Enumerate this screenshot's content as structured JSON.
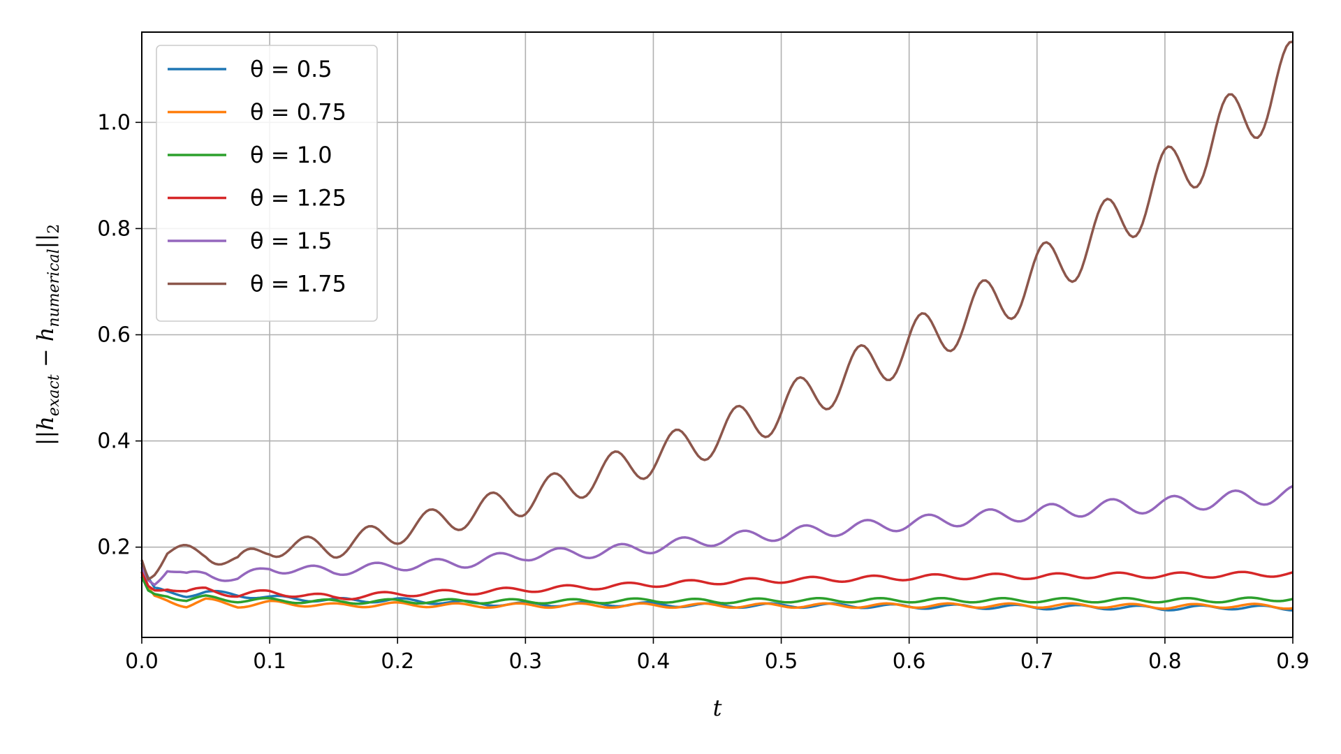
{
  "chart_data": {
    "type": "line",
    "title": "",
    "xlabel": "t",
    "ylabel_parts": {
      "open": "||h",
      "sub1": "exact",
      "minus": " − h",
      "sub2": "numerical",
      "close": "||",
      "sub3": "2"
    },
    "xlim": [
      0.0,
      0.9
    ],
    "ylim": [
      0.03,
      1.17
    ],
    "xticks": [
      0.0,
      0.1,
      0.2,
      0.3,
      0.4,
      0.5,
      0.6,
      0.7,
      0.8,
      0.9
    ],
    "xtick_labels": [
      "0.0",
      "0.1",
      "0.2",
      "0.3",
      "0.4",
      "0.5",
      "0.6",
      "0.7",
      "0.8",
      "0.9"
    ],
    "yticks": [
      0.2,
      0.4,
      0.6,
      0.8,
      1.0
    ],
    "ytick_labels": [
      "0.2",
      "0.4",
      "0.6",
      "0.8",
      "1.0"
    ],
    "grid": true,
    "legend_position": "top-left",
    "series": [
      {
        "name": "θ = 0.5",
        "color": "#1f77b4",
        "x": [
          0.0,
          0.005,
          0.01,
          0.02,
          0.035,
          0.05,
          0.075,
          0.1,
          0.15,
          0.2,
          0.25,
          0.3,
          0.35,
          0.4,
          0.45,
          0.5,
          0.55,
          0.6,
          0.65,
          0.7,
          0.75,
          0.8,
          0.85,
          0.9
        ],
        "y": [
          0.17,
          0.14,
          0.12,
          0.115,
          0.11,
          0.115,
          0.11,
          0.105,
          0.1,
          0.1,
          0.095,
          0.092,
          0.093,
          0.092,
          0.09,
          0.09,
          0.09,
          0.088,
          0.088,
          0.087,
          0.087,
          0.085,
          0.087,
          0.085
        ]
      },
      {
        "name": "θ = 0.75",
        "color": "#ff7f0e",
        "x": [
          0.0,
          0.005,
          0.01,
          0.02,
          0.035,
          0.05,
          0.075,
          0.1,
          0.15,
          0.2,
          0.25,
          0.3,
          0.35,
          0.4,
          0.45,
          0.5,
          0.55,
          0.6,
          0.65,
          0.7,
          0.75,
          0.8,
          0.85,
          0.9
        ],
        "y": [
          0.15,
          0.12,
          0.105,
          0.1,
          0.09,
          0.1,
          0.09,
          0.095,
          0.09,
          0.092,
          0.09,
          0.09,
          0.09,
          0.09,
          0.09,
          0.09,
          0.09,
          0.09,
          0.09,
          0.09,
          0.09,
          0.088,
          0.09,
          0.088
        ]
      },
      {
        "name": "θ = 1.0",
        "color": "#2ca02c",
        "x": [
          0.0,
          0.005,
          0.01,
          0.02,
          0.035,
          0.05,
          0.075,
          0.1,
          0.15,
          0.2,
          0.25,
          0.3,
          0.35,
          0.4,
          0.45,
          0.5,
          0.55,
          0.6,
          0.65,
          0.7,
          0.75,
          0.8,
          0.85,
          0.9
        ],
        "y": [
          0.14,
          0.115,
          0.11,
          0.11,
          0.1,
          0.105,
          0.1,
          0.1,
          0.097,
          0.098,
          0.098,
          0.098,
          0.098,
          0.1,
          0.098,
          0.1,
          0.1,
          0.1,
          0.1,
          0.1,
          0.1,
          0.1,
          0.1,
          0.103
        ]
      },
      {
        "name": "θ = 1.25",
        "color": "#d62728",
        "x": [
          0.0,
          0.005,
          0.01,
          0.02,
          0.035,
          0.05,
          0.075,
          0.1,
          0.15,
          0.2,
          0.25,
          0.3,
          0.35,
          0.4,
          0.45,
          0.5,
          0.55,
          0.6,
          0.65,
          0.7,
          0.75,
          0.8,
          0.85,
          0.9
        ],
        "y": [
          0.15,
          0.125,
          0.12,
          0.125,
          0.115,
          0.12,
          0.11,
          0.115,
          0.105,
          0.112,
          0.115,
          0.12,
          0.125,
          0.13,
          0.135,
          0.138,
          0.14,
          0.143,
          0.145,
          0.145,
          0.147,
          0.147,
          0.148,
          0.15
        ]
      },
      {
        "name": "θ = 1.5",
        "color": "#9467bd",
        "x": [
          0.0,
          0.005,
          0.01,
          0.02,
          0.035,
          0.05,
          0.075,
          0.1,
          0.15,
          0.2,
          0.25,
          0.3,
          0.35,
          0.4,
          0.45,
          0.5,
          0.55,
          0.6,
          0.65,
          0.7,
          0.75,
          0.8,
          0.85,
          0.9
        ],
        "y": [
          0.16,
          0.14,
          0.135,
          0.16,
          0.145,
          0.15,
          0.14,
          0.16,
          0.155,
          0.165,
          0.17,
          0.185,
          0.19,
          0.2,
          0.215,
          0.225,
          0.235,
          0.245,
          0.255,
          0.265,
          0.275,
          0.28,
          0.29,
          0.3
        ]
      },
      {
        "name": "θ = 1.75",
        "color": "#8c564b",
        "x": [
          0.0,
          0.005,
          0.01,
          0.02,
          0.035,
          0.05,
          0.075,
          0.1,
          0.15,
          0.2,
          0.25,
          0.3,
          0.35,
          0.4,
          0.45,
          0.5,
          0.55,
          0.6,
          0.65,
          0.7,
          0.75,
          0.8,
          0.85,
          0.9
        ],
        "y": [
          0.18,
          0.15,
          0.16,
          0.19,
          0.19,
          0.19,
          0.17,
          0.2,
          0.2,
          0.23,
          0.26,
          0.29,
          0.33,
          0.37,
          0.41,
          0.46,
          0.52,
          0.58,
          0.64,
          0.71,
          0.79,
          0.89,
          0.99,
          1.09
        ]
      }
    ]
  }
}
